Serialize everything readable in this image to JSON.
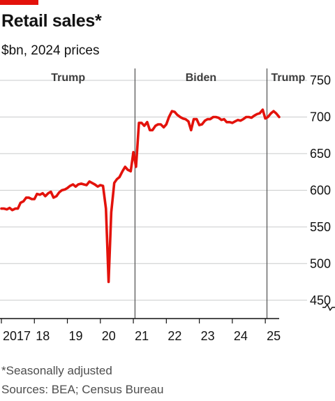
{
  "header": {
    "accent_color": "#e3120b",
    "title": "Retail sales*",
    "subtitle": "$bn, 2024 prices"
  },
  "footer": {
    "footnote": "*Seasonally adjusted",
    "source": "Sources: BEA; Census Bureau"
  },
  "chart_data": {
    "type": "line",
    "title": "Retail sales*",
    "subtitle": "$bn, 2024 prices",
    "xlabel": "",
    "ylabel": "",
    "y_axis_position": "right",
    "ylim": [
      425,
      750
    ],
    "y_ticks": [
      450,
      500,
      550,
      600,
      650,
      700,
      750
    ],
    "y_axis_break": true,
    "grid": true,
    "line_color": "#e3120b",
    "x_range": [
      2017.0,
      2025.42
    ],
    "x_ticks": [
      {
        "value": 2017,
        "label": "2017"
      },
      {
        "value": 2018,
        "label": "18"
      },
      {
        "value": 2019,
        "label": "19"
      },
      {
        "value": 2020,
        "label": "20"
      },
      {
        "value": 2021,
        "label": "21"
      },
      {
        "value": 2022,
        "label": "22"
      },
      {
        "value": 2023,
        "label": "23"
      },
      {
        "value": 2024,
        "label": "24"
      },
      {
        "value": 2025,
        "label": "25"
      }
    ],
    "eras": [
      {
        "label": "Trump",
        "start": 2017.0,
        "end": 2021.05
      },
      {
        "label": "Biden",
        "start": 2021.05,
        "end": 2025.05
      },
      {
        "label": "Trump",
        "start": 2025.05,
        "end": 2025.42
      }
    ],
    "era_dividers": [
      2021.05,
      2025.05
    ],
    "series": [
      {
        "x": [
          2017.0,
          2017.08,
          2017.17,
          2017.25,
          2017.33,
          2017.42,
          2017.5,
          2017.58,
          2017.67,
          2017.75,
          2017.83,
          2017.92,
          2018.0,
          2018.08,
          2018.17,
          2018.25,
          2018.33,
          2018.42,
          2018.5,
          2018.58,
          2018.67,
          2018.75,
          2018.83,
          2018.92,
          2019.0,
          2019.08,
          2019.17,
          2019.25,
          2019.33,
          2019.42,
          2019.5,
          2019.58,
          2019.67,
          2019.75,
          2019.83,
          2019.92,
          2020.0,
          2020.08,
          2020.17,
          2020.25,
          2020.33,
          2020.42,
          2020.5,
          2020.58,
          2020.67,
          2020.75,
          2020.83,
          2020.92,
          2021.0,
          2021.08,
          2021.17,
          2021.25,
          2021.33,
          2021.42,
          2021.5,
          2021.58,
          2021.67,
          2021.75,
          2021.83,
          2021.92,
          2022.0,
          2022.08,
          2022.17,
          2022.25,
          2022.33,
          2022.42,
          2022.5,
          2022.58,
          2022.67,
          2022.75,
          2022.83,
          2022.92,
          2023.0,
          2023.08,
          2023.17,
          2023.25,
          2023.33,
          2023.42,
          2023.5,
          2023.58,
          2023.67,
          2023.75,
          2023.83,
          2023.92,
          2024.0,
          2024.08,
          2024.17,
          2024.25,
          2024.33,
          2024.42,
          2024.5,
          2024.58,
          2024.67,
          2024.75,
          2024.83,
          2024.92,
          2025.0,
          2025.08,
          2025.17,
          2025.25,
          2025.33,
          2025.42
        ],
        "values": [
          575,
          575,
          574,
          576,
          573,
          575,
          575,
          583,
          585,
          590,
          590,
          588,
          588,
          595,
          594,
          596,
          592,
          596,
          598,
          590,
          592,
          597,
          600,
          601,
          603,
          606,
          608,
          605,
          608,
          609,
          608,
          607,
          612,
          610,
          608,
          605,
          607,
          606,
          575,
          475,
          570,
          610,
          615,
          618,
          626,
          632,
          628,
          626,
          652,
          632,
          692,
          692,
          688,
          693,
          682,
          682,
          688,
          690,
          690,
          686,
          690,
          700,
          708,
          707,
          703,
          700,
          698,
          697,
          694,
          682,
          697,
          697,
          689,
          690,
          695,
          697,
          697,
          700,
          700,
          699,
          696,
          697,
          693,
          693,
          692,
          694,
          696,
          695,
          697,
          700,
          700,
          699,
          702,
          704,
          705,
          710,
          698,
          700,
          705,
          708,
          705,
          700
        ]
      }
    ]
  }
}
